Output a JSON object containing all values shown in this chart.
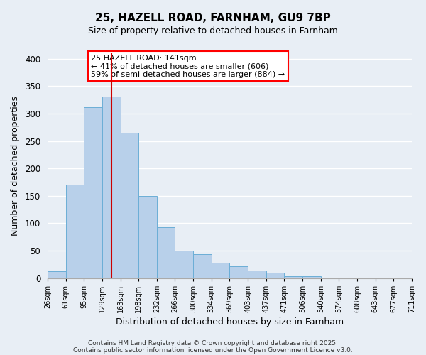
{
  "title": "25, HAZELL ROAD, FARNHAM, GU9 7BP",
  "subtitle": "Size of property relative to detached houses in Farnham",
  "xlabel": "Distribution of detached houses by size in Farnham",
  "ylabel": "Number of detached properties",
  "bar_values": [
    13,
    170,
    311,
    331,
    265,
    150,
    93,
    50,
    44,
    28,
    21,
    14,
    10,
    3,
    3,
    1,
    1,
    1,
    0,
    0
  ],
  "bin_labels": [
    "26sqm",
    "61sqm",
    "95sqm",
    "129sqm",
    "163sqm",
    "198sqm",
    "232sqm",
    "266sqm",
    "300sqm",
    "334sqm",
    "369sqm",
    "403sqm",
    "437sqm",
    "471sqm",
    "506sqm",
    "540sqm",
    "574sqm",
    "608sqm",
    "643sqm",
    "677sqm",
    "711sqm"
  ],
  "bar_color": "#b8d0ea",
  "bar_edge_color": "#6baed6",
  "ylim": [
    0,
    410
  ],
  "yticks": [
    0,
    50,
    100,
    150,
    200,
    250,
    300,
    350,
    400
  ],
  "property_label": "25 HAZELL ROAD: 141sqm",
  "annotation_line1": "← 41% of detached houses are smaller (606)",
  "annotation_line2": "59% of semi-detached houses are larger (884) →",
  "vline_x": 3.5,
  "vline_color": "#cc0000",
  "footnote1": "Contains HM Land Registry data © Crown copyright and database right 2025.",
  "footnote2": "Contains public sector information licensed under the Open Government Licence v3.0.",
  "background_color": "#e8eef5",
  "grid_color": "#ffffff",
  "figsize": [
    6.0,
    5.0
  ],
  "dpi": 100
}
